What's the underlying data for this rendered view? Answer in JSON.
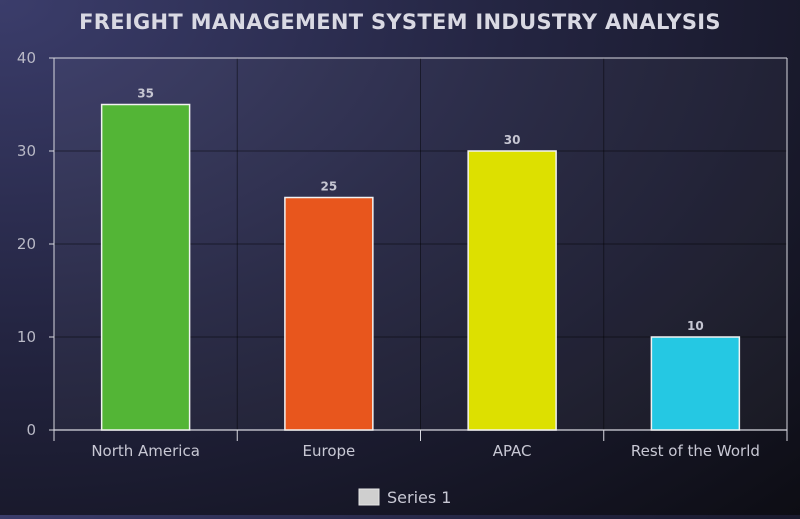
{
  "chart_data": {
    "type": "bar",
    "title": "FREIGHT MANAGEMENT SYSTEM INDUSTRY ANALYSIS",
    "categories": [
      "North America",
      "Europe",
      "APAC",
      "Rest of the World"
    ],
    "series": [
      {
        "name": "Series 1",
        "values": [
          35,
          25,
          30,
          10
        ]
      }
    ],
    "bar_colors": [
      "#53b536",
      "#e8561d",
      "#dde000",
      "#25c8e3"
    ],
    "ylim": [
      0,
      40
    ],
    "yticks": [
      0,
      10,
      20,
      30,
      40
    ],
    "xlabel": "",
    "ylabel": "",
    "grid": true,
    "legend": {
      "position": "bottom",
      "swatch_color": "#cfcfcf"
    },
    "data_labels": true
  }
}
